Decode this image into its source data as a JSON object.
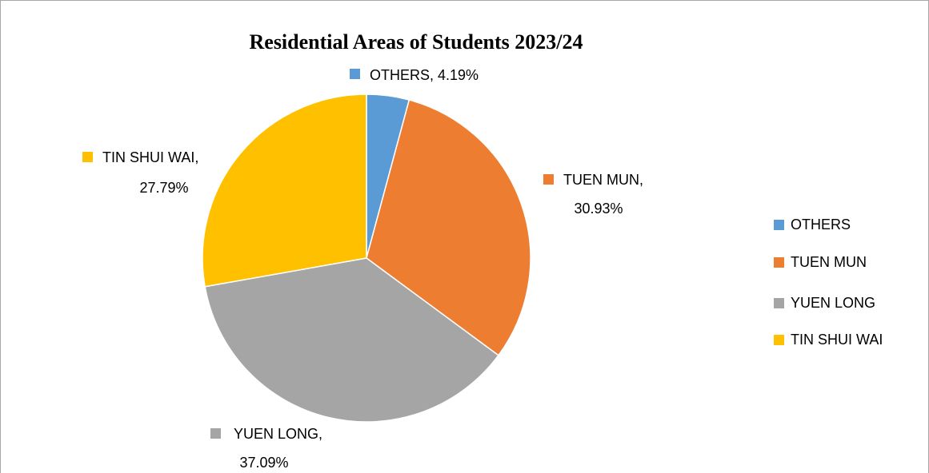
{
  "chart_data": {
    "type": "pie",
    "title": "Residential Areas of Students 2023/24",
    "categories": [
      "OTHERS",
      "TUEN MUN",
      "YUEN LONG",
      "TIN SHUI WAI"
    ],
    "values": [
      4.19,
      30.93,
      37.09,
      27.79
    ],
    "value_labels": [
      [
        "OTHERS, 4.19%"
      ],
      [
        "TUEN MUN,",
        "30.93%"
      ],
      [
        "YUEN LONG,",
        "37.09%"
      ],
      [
        "TIN SHUI WAI,",
        "27.79%"
      ]
    ],
    "colors": [
      "#5b9bd5",
      "#ed7d31",
      "#a5a5a5",
      "#ffc000"
    ],
    "legend": "right"
  }
}
